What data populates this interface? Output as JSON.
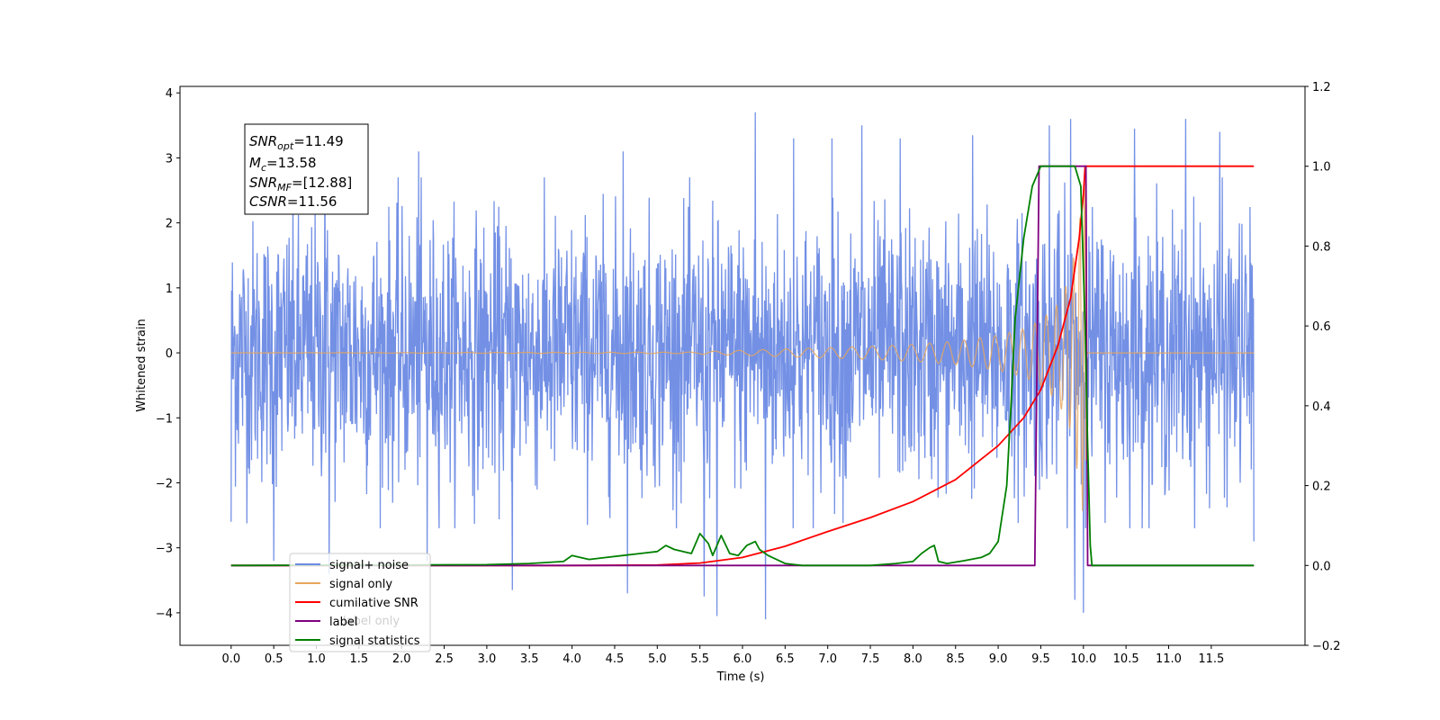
{
  "chart_data": {
    "type": "line",
    "xlabel": "Time (s)",
    "ylabel": "Whitened strain",
    "xlim": [
      -0.6,
      12.6
    ],
    "ylim": [
      -4.5,
      4.1
    ],
    "y2lim": [
      -0.2,
      1.2
    ],
    "x_ticks": [
      "0.0",
      "0.5",
      "1.0",
      "1.5",
      "2.0",
      "2.5",
      "3.0",
      "3.5",
      "4.0",
      "4.5",
      "5.0",
      "5.5",
      "6.0",
      "6.5",
      "7.0",
      "7.5",
      "8.0",
      "8.5",
      "9.0",
      "9.5",
      "10.0",
      "10.5",
      "11.0",
      "11.5"
    ],
    "y_ticks": [
      "−4",
      "−3",
      "−2",
      "−1",
      "0",
      "1",
      "2",
      "3",
      "4"
    ],
    "y2_ticks": [
      "−0.2",
      "0.0",
      "0.2",
      "0.4",
      "0.6",
      "0.8",
      "1.0",
      "1.2"
    ],
    "legend_position": "lower-left",
    "grid": false,
    "annotation": {
      "lines": [
        {
          "var": "SNR",
          "sub": "opt",
          "value": "=11.49"
        },
        {
          "var": "M",
          "sub": "c",
          "value": "=13.58"
        },
        {
          "var": "SNR",
          "sub": "MF",
          "value": "=[12.88]"
        },
        {
          "var": "CSNR",
          "sub": "",
          "value": "=11.56"
        }
      ]
    },
    "series": [
      {
        "name": "signal+ noise",
        "axis": "left",
        "color": "#6c8ae4",
        "style": "noise",
        "x_range": [
          0.0,
          12.0
        ],
        "spikes_up": [
          [
            0.0,
            2.4
          ],
          [
            0.5,
            2.85
          ],
          [
            1.1,
            3.25
          ],
          [
            2.2,
            3.1
          ],
          [
            3.3,
            3.15
          ],
          [
            4.6,
            3.1
          ],
          [
            6.15,
            3.7
          ],
          [
            6.6,
            3.3
          ],
          [
            7.05,
            3.3
          ],
          [
            7.4,
            3.5
          ],
          [
            7.85,
            3.3
          ],
          [
            8.7,
            3.35
          ],
          [
            9.6,
            3.5
          ],
          [
            9.85,
            3.6
          ],
          [
            10.6,
            3.45
          ],
          [
            11.2,
            3.6
          ],
          [
            11.6,
            3.4
          ],
          [
            12.0,
            3.0
          ]
        ],
        "spikes_down": [
          [
            0.0,
            -2.6
          ],
          [
            0.5,
            -3.2
          ],
          [
            1.15,
            -3.4
          ],
          [
            2.3,
            -3.2
          ],
          [
            3.3,
            -3.65
          ],
          [
            4.65,
            -3.7
          ],
          [
            5.55,
            -3.75
          ],
          [
            5.7,
            -4.05
          ],
          [
            6.27,
            -4.1
          ],
          [
            9.9,
            -3.8
          ],
          [
            10.0,
            -4.0
          ],
          [
            12.0,
            -2.9
          ]
        ]
      },
      {
        "name": "signal only",
        "axis": "left",
        "color": "#e8a65c",
        "style": "chirp",
        "x": [
          5.5,
          6.0,
          6.5,
          7.0,
          7.5,
          8.0,
          8.5,
          9.0,
          9.3,
          9.5,
          9.7,
          9.85,
          9.95,
          10.02,
          10.05
        ],
        "amplitude": [
          0.02,
          0.04,
          0.06,
          0.08,
          0.1,
          0.13,
          0.18,
          0.27,
          0.37,
          0.5,
          0.75,
          1.2,
          2.0,
          2.8,
          0.0
        ]
      },
      {
        "name": "cumilative SNR",
        "axis": "right",
        "color": "#ff0000",
        "x": [
          0.0,
          4.0,
          5.0,
          5.5,
          6.0,
          6.5,
          7.0,
          7.5,
          8.0,
          8.5,
          9.0,
          9.3,
          9.5,
          9.7,
          9.85,
          9.95,
          10.0,
          10.02,
          10.5,
          11.0,
          11.5,
          12.0
        ],
        "values": [
          0.0,
          0.0,
          0.001,
          0.006,
          0.02,
          0.048,
          0.085,
          0.12,
          0.16,
          0.215,
          0.3,
          0.37,
          0.44,
          0.55,
          0.67,
          0.82,
          0.93,
          1.0,
          1.0,
          1.0,
          1.0,
          1.0
        ]
      },
      {
        "name": "label",
        "axis": "right",
        "color": "#800080",
        "x": [
          0.0,
          9.43,
          9.48,
          10.03,
          10.05,
          12.0
        ],
        "values": [
          0.0,
          0.0,
          1.0,
          1.0,
          0.0,
          0.0
        ]
      },
      {
        "name": "signal statistics",
        "axis": "right",
        "color": "#008000",
        "x": [
          0.0,
          3.0,
          3.5,
          3.9,
          4.0,
          4.2,
          4.4,
          4.6,
          4.8,
          5.0,
          5.1,
          5.2,
          5.3,
          5.4,
          5.5,
          5.6,
          5.65,
          5.75,
          5.85,
          5.95,
          6.05,
          6.15,
          6.2,
          6.3,
          6.5,
          6.7,
          7.0,
          7.5,
          7.8,
          8.0,
          8.1,
          8.2,
          8.25,
          8.3,
          8.4,
          8.6,
          8.8,
          8.9,
          9.0,
          9.1,
          9.15,
          9.2,
          9.3,
          9.4,
          9.5,
          9.6,
          9.7,
          9.8,
          9.9,
          9.97,
          10.02,
          10.05,
          10.08,
          10.1,
          10.12,
          12.0
        ],
        "values": [
          0.0,
          0.002,
          0.005,
          0.01,
          0.025,
          0.015,
          0.02,
          0.025,
          0.03,
          0.035,
          0.05,
          0.04,
          0.035,
          0.03,
          0.08,
          0.055,
          0.025,
          0.075,
          0.03,
          0.025,
          0.05,
          0.06,
          0.04,
          0.025,
          0.005,
          0.0,
          0.0,
          0.0,
          0.005,
          0.01,
          0.03,
          0.045,
          0.05,
          0.01,
          0.005,
          0.012,
          0.02,
          0.03,
          0.06,
          0.2,
          0.4,
          0.62,
          0.82,
          0.95,
          1.0,
          1.0,
          1.0,
          1.0,
          1.0,
          0.95,
          0.6,
          0.3,
          0.05,
          0.0,
          0.0,
          0.0
        ]
      }
    ],
    "legend_overlay_text": "label only"
  }
}
